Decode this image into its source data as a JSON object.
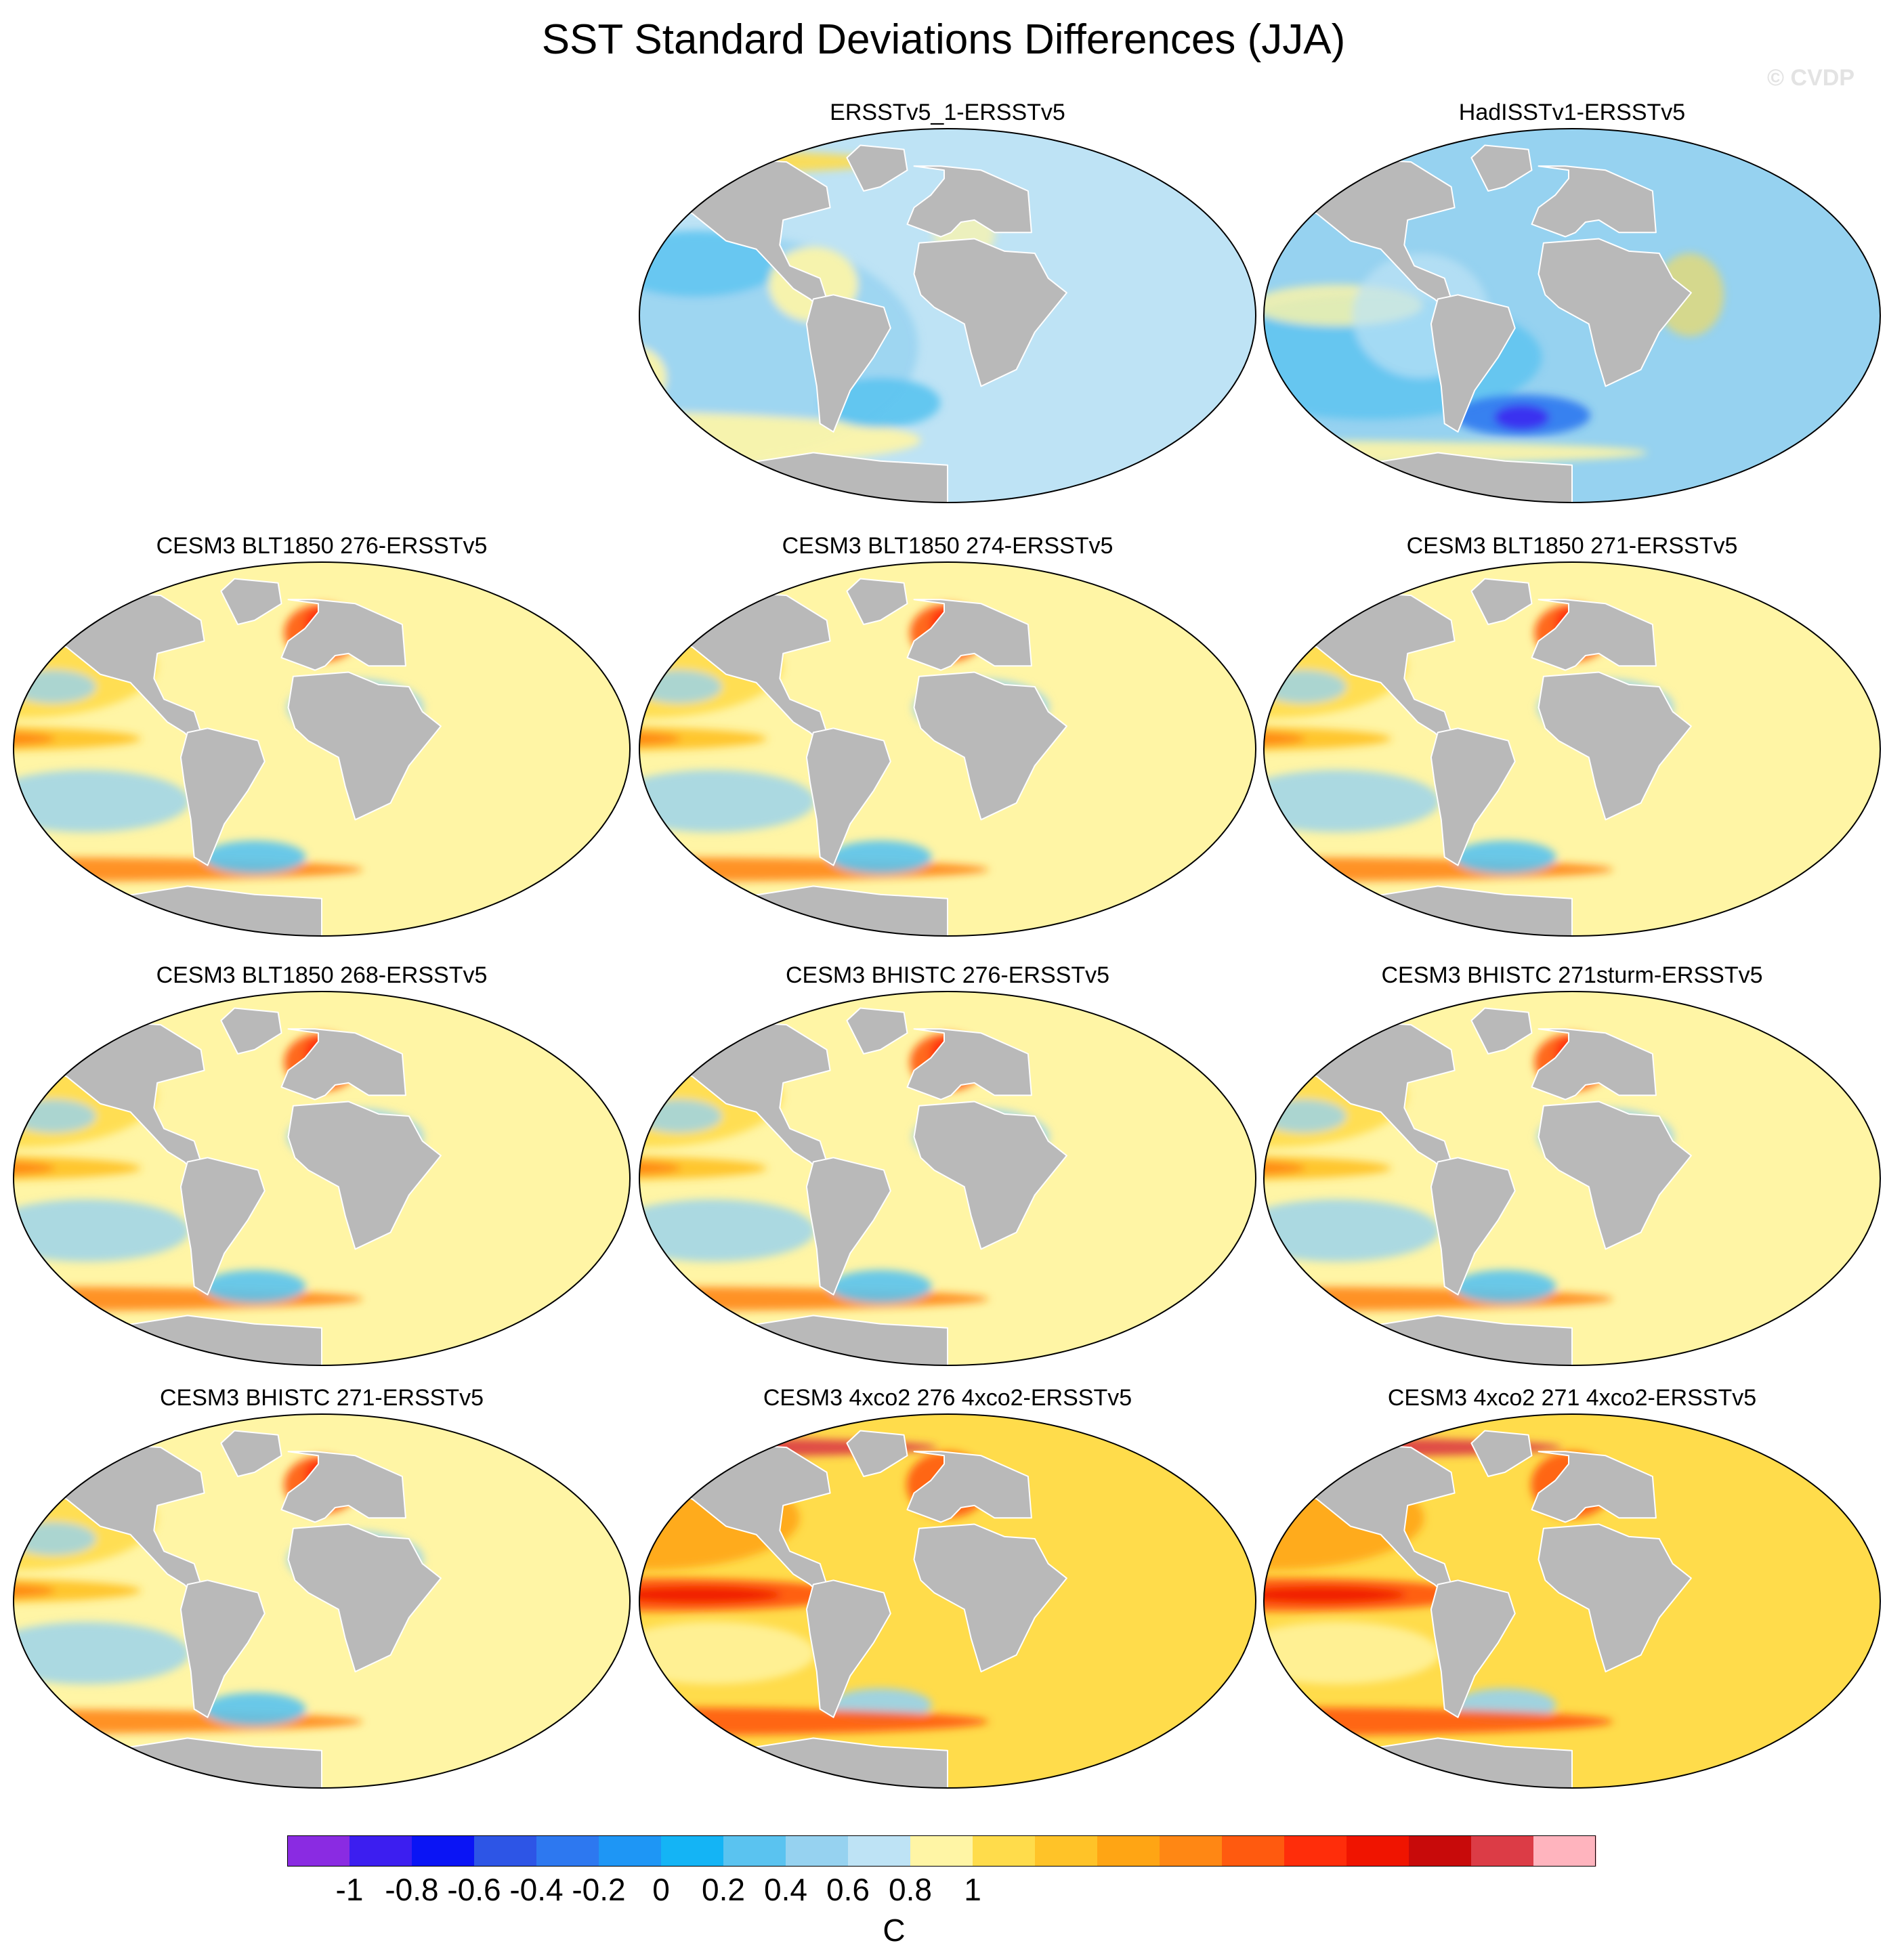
{
  "figure": {
    "title": "SST Standard Deviations Differences (JJA)",
    "watermark": "© CVDP"
  },
  "legend": {
    "unit": "C",
    "tick_labels": [
      "-1",
      "-0.8",
      "-0.6",
      "-0.4",
      "-0.2",
      "0",
      "0.2",
      "0.4",
      "0.6",
      "0.8",
      "1"
    ],
    "tick_values": [
      -1,
      -0.8,
      -0.6,
      -0.4,
      -0.2,
      0,
      0.2,
      0.4,
      0.6,
      0.8,
      1
    ],
    "colors": [
      "#8a2be2",
      "#3c1ef0",
      "#0a14f5",
      "#2d55e6",
      "#2d78f0",
      "#1e96f5",
      "#14b4f5",
      "#5ac3f0",
      "#96d2f0",
      "#bee3f5",
      "#fff5a5",
      "#ffdc4b",
      "#ffc328",
      "#ffa514",
      "#ff8714",
      "#ff5a0f",
      "#ff2d0a",
      "#f01400",
      "#c80a0a",
      "#dc3c46",
      "#ffb4be"
    ]
  },
  "colors": {
    "land": "#b9b9b9",
    "coast": "#ffffff"
  },
  "panels": [
    {
      "label": "ERSSTv5_1-ERSSTv5",
      "pattern": "obs1"
    },
    {
      "label": "HadISSTv1-ERSSTv5",
      "pattern": "obs2"
    },
    {
      "label": "CESM3 BLT1850 276-ERSSTv5",
      "pattern": "model"
    },
    {
      "label": "CESM3 BLT1850 274-ERSSTv5",
      "pattern": "model"
    },
    {
      "label": "CESM3 BLT1850 271-ERSSTv5",
      "pattern": "model"
    },
    {
      "label": "CESM3 BLT1850 268-ERSSTv5",
      "pattern": "model"
    },
    {
      "label": "CESM3 BHISTC 276-ERSSTv5",
      "pattern": "model"
    },
    {
      "label": "CESM3 BHISTC 271sturm-ERSSTv5",
      "pattern": "model"
    },
    {
      "label": "CESM3 BHISTC 271-ERSSTv5",
      "pattern": "model"
    },
    {
      "label": "CESM3 4xco2 276 4xco2-ERSSTv5",
      "pattern": "warm"
    },
    {
      "label": "CESM3 4xco2 271 4xco2-ERSSTv5",
      "pattern": "warm"
    }
  ]
}
